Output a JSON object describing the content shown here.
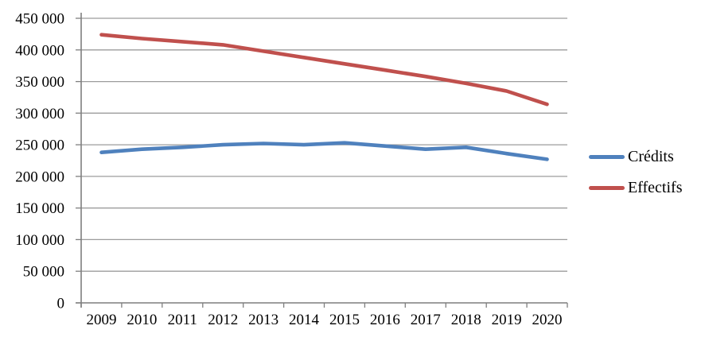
{
  "chart_data": {
    "type": "line",
    "title": "",
    "xlabel": "",
    "ylabel": "",
    "categories": [
      "2009",
      "2010",
      "2011",
      "2012",
      "2013",
      "2014",
      "2015",
      "2016",
      "2017",
      "2018",
      "2019",
      "2020"
    ],
    "series": [
      {
        "name": "Crédits",
        "color": "#4F81BD",
        "values": [
          238000,
          243000,
          246000,
          250000,
          252000,
          250000,
          253000,
          248000,
          243000,
          246000,
          236000,
          227000
        ]
      },
      {
        "name": "Effectifs",
        "color": "#C0504D",
        "values": [
          424000,
          418000,
          413000,
          408000,
          398000,
          388000,
          378000,
          368000,
          358000,
          347000,
          335000,
          314000
        ]
      }
    ],
    "ylim": [
      0,
      450000
    ],
    "y_tick_step": 50000,
    "y_tick_labels": [
      "0",
      "50 000",
      "100 000",
      "150 000",
      "200 000",
      "250 000",
      "300 000",
      "350 000",
      "400 000",
      "450 000"
    ],
    "grid": true,
    "legend_position": "right"
  },
  "colors": {
    "gridline": "#9c9c9c",
    "axis": "#7f7f7f",
    "text": "#000000",
    "background": "#ffffff"
  }
}
